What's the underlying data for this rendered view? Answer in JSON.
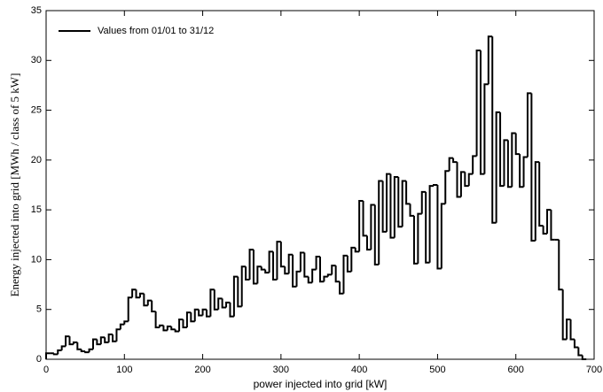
{
  "chart_data": {
    "type": "histogram",
    "xlabel": "power injected into grid [kW]",
    "ylabel": "Energy injected into grid [MWh / class of 5 kW]",
    "legend_loc": "upper left",
    "series": [
      {
        "name": "Values from 01/01 to 31/12",
        "color": "#000000",
        "bins": [
          0,
          5,
          10,
          15,
          20,
          25,
          30,
          35,
          40,
          45,
          50,
          55,
          60,
          65,
          70,
          75,
          80,
          85,
          90,
          95,
          100,
          105,
          110,
          115,
          120,
          125,
          130,
          135,
          140,
          145,
          150,
          155,
          160,
          165,
          170,
          175,
          180,
          185,
          190,
          195,
          200,
          205,
          210,
          215,
          220,
          225,
          230,
          235,
          240,
          245,
          250,
          255,
          260,
          265,
          270,
          275,
          280,
          285,
          290,
          295,
          300,
          305,
          310,
          315,
          320,
          325,
          330,
          335,
          340,
          345,
          350,
          355,
          360,
          365,
          370,
          375,
          380,
          385,
          390,
          395,
          400,
          405,
          410,
          415,
          420,
          425,
          430,
          435,
          440,
          445,
          450,
          455,
          460,
          465,
          470,
          475,
          480,
          485,
          490,
          495,
          500,
          505,
          510,
          515,
          520,
          525,
          530,
          535,
          540,
          545,
          550,
          555,
          560,
          565,
          570,
          575,
          580,
          585,
          590,
          595,
          600,
          605,
          610,
          615,
          620,
          625,
          630,
          635,
          640,
          645,
          650,
          655,
          660,
          665,
          670,
          675,
          680,
          685,
          690
        ],
        "values": [
          0.6,
          0.6,
          0.5,
          0.9,
          1.3,
          2.3,
          1.5,
          1.7,
          1.0,
          0.8,
          0.7,
          1.0,
          2.0,
          1.5,
          2.2,
          1.7,
          2.5,
          1.8,
          3.0,
          3.5,
          3.8,
          6.2,
          7.0,
          6.2,
          6.6,
          5.4,
          5.9,
          4.8,
          3.2,
          3.4,
          2.9,
          3.3,
          3.0,
          2.8,
          4.0,
          3.2,
          4.7,
          3.8,
          5.0,
          4.4,
          5.0,
          4.3,
          7.0,
          5.0,
          6.1,
          5.2,
          5.7,
          4.3,
          8.3,
          5.3,
          9.3,
          8.0,
          11.0,
          7.6,
          9.3,
          9.0,
          8.7,
          10.8,
          8.0,
          11.8,
          9.3,
          8.6,
          10.5,
          7.3,
          8.8,
          10.7,
          8.3,
          7.7,
          9.0,
          10.3,
          7.8,
          8.3,
          8.5,
          9.4,
          7.8,
          6.6,
          10.4,
          8.8,
          11.2,
          10.8,
          15.9,
          12.4,
          11.0,
          15.5,
          9.5,
          17.9,
          12.8,
          18.6,
          12.2,
          18.3,
          13.3,
          17.9,
          15.6,
          14.4,
          9.6,
          14.6,
          16.8,
          9.7,
          17.4,
          17.5,
          9.1,
          15.6,
          18.9,
          20.2,
          19.8,
          16.3,
          18.8,
          17.4,
          18.6,
          20.4,
          31.0,
          18.6,
          27.6,
          32.4,
          13.7,
          24.8,
          17.4,
          22.0,
          17.3,
          22.7,
          20.6,
          17.3,
          20.3,
          26.7,
          11.9,
          19.8,
          13.4,
          12.6,
          15.0,
          12.0,
          12.0,
          7.0,
          2.0,
          4.0,
          2.0,
          1.2,
          0.4,
          0.0
        ]
      }
    ],
    "xlim": [
      0,
      700
    ],
    "xticks": [
      0,
      100,
      200,
      300,
      400,
      500,
      600,
      700
    ],
    "ylim": [
      0,
      35
    ],
    "yticks": [
      0,
      5,
      10,
      15,
      20,
      25,
      30,
      35
    ]
  }
}
